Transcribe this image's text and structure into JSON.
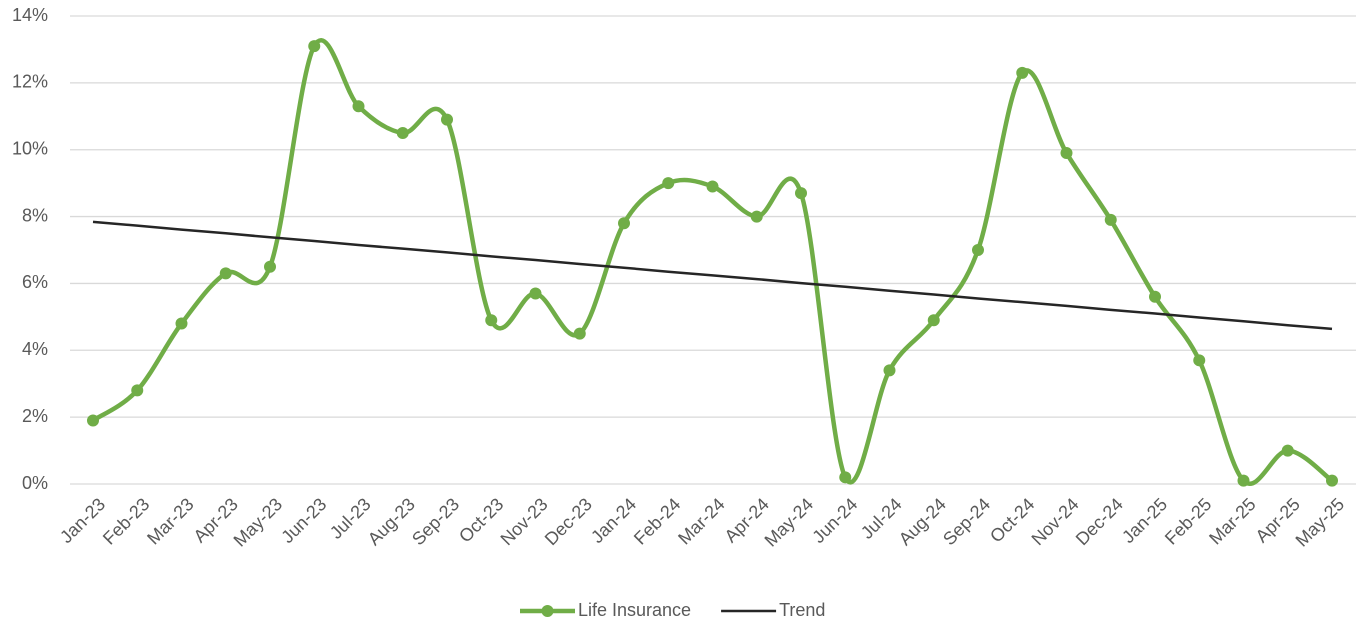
{
  "chart_data": {
    "type": "line",
    "categories": [
      "Jan-23",
      "Feb-23",
      "Mar-23",
      "Apr-23",
      "May-23",
      "Jun-23",
      "Jul-23",
      "Aug-23",
      "Sep-23",
      "Oct-23",
      "Nov-23",
      "Dec-23",
      "Jan-24",
      "Feb-24",
      "Mar-24",
      "Apr-24",
      "May-24",
      "Jun-24",
      "Jul-24",
      "Aug-24",
      "Sep-24",
      "Oct-24",
      "Nov-24",
      "Dec-24",
      "Jan-25",
      "Feb-25",
      "Mar-25",
      "Apr-25",
      "May-25"
    ],
    "series": [
      {
        "name": "Life Insurance",
        "color": "#70ad47",
        "smooth": true,
        "markers": true,
        "values": [
          1.9,
          2.8,
          4.8,
          6.3,
          6.5,
          13.1,
          11.3,
          10.5,
          10.9,
          4.9,
          5.7,
          4.5,
          7.8,
          9.0,
          8.9,
          8.0,
          8.7,
          0.2,
          3.4,
          4.9,
          7.0,
          12.3,
          9.9,
          7.9,
          5.6,
          3.7,
          0.1,
          1.0,
          0.1
        ]
      },
      {
        "name": "Trend",
        "color": "#262626",
        "smooth": false,
        "markers": false,
        "values": [
          7.84,
          7.73,
          7.61,
          7.5,
          7.38,
          7.27,
          7.15,
          7.04,
          6.93,
          6.81,
          6.7,
          6.58,
          6.47,
          6.35,
          6.24,
          6.13,
          6.01,
          5.9,
          5.78,
          5.67,
          5.55,
          5.44,
          5.33,
          5.21,
          5.1,
          4.98,
          4.87,
          4.75,
          4.64
        ]
      }
    ],
    "ylim": [
      0,
      14
    ],
    "yticks": [
      {
        "value": 0,
        "label": "0%"
      },
      {
        "value": 2,
        "label": "2%"
      },
      {
        "value": 4,
        "label": "4%"
      },
      {
        "value": 6,
        "label": "6%"
      },
      {
        "value": 8,
        "label": "8%"
      },
      {
        "value": 10,
        "label": "10%"
      },
      {
        "value": 12,
        "label": "12%"
      },
      {
        "value": 14,
        "label": "14%"
      }
    ],
    "grid": true,
    "legend": "bottom"
  }
}
